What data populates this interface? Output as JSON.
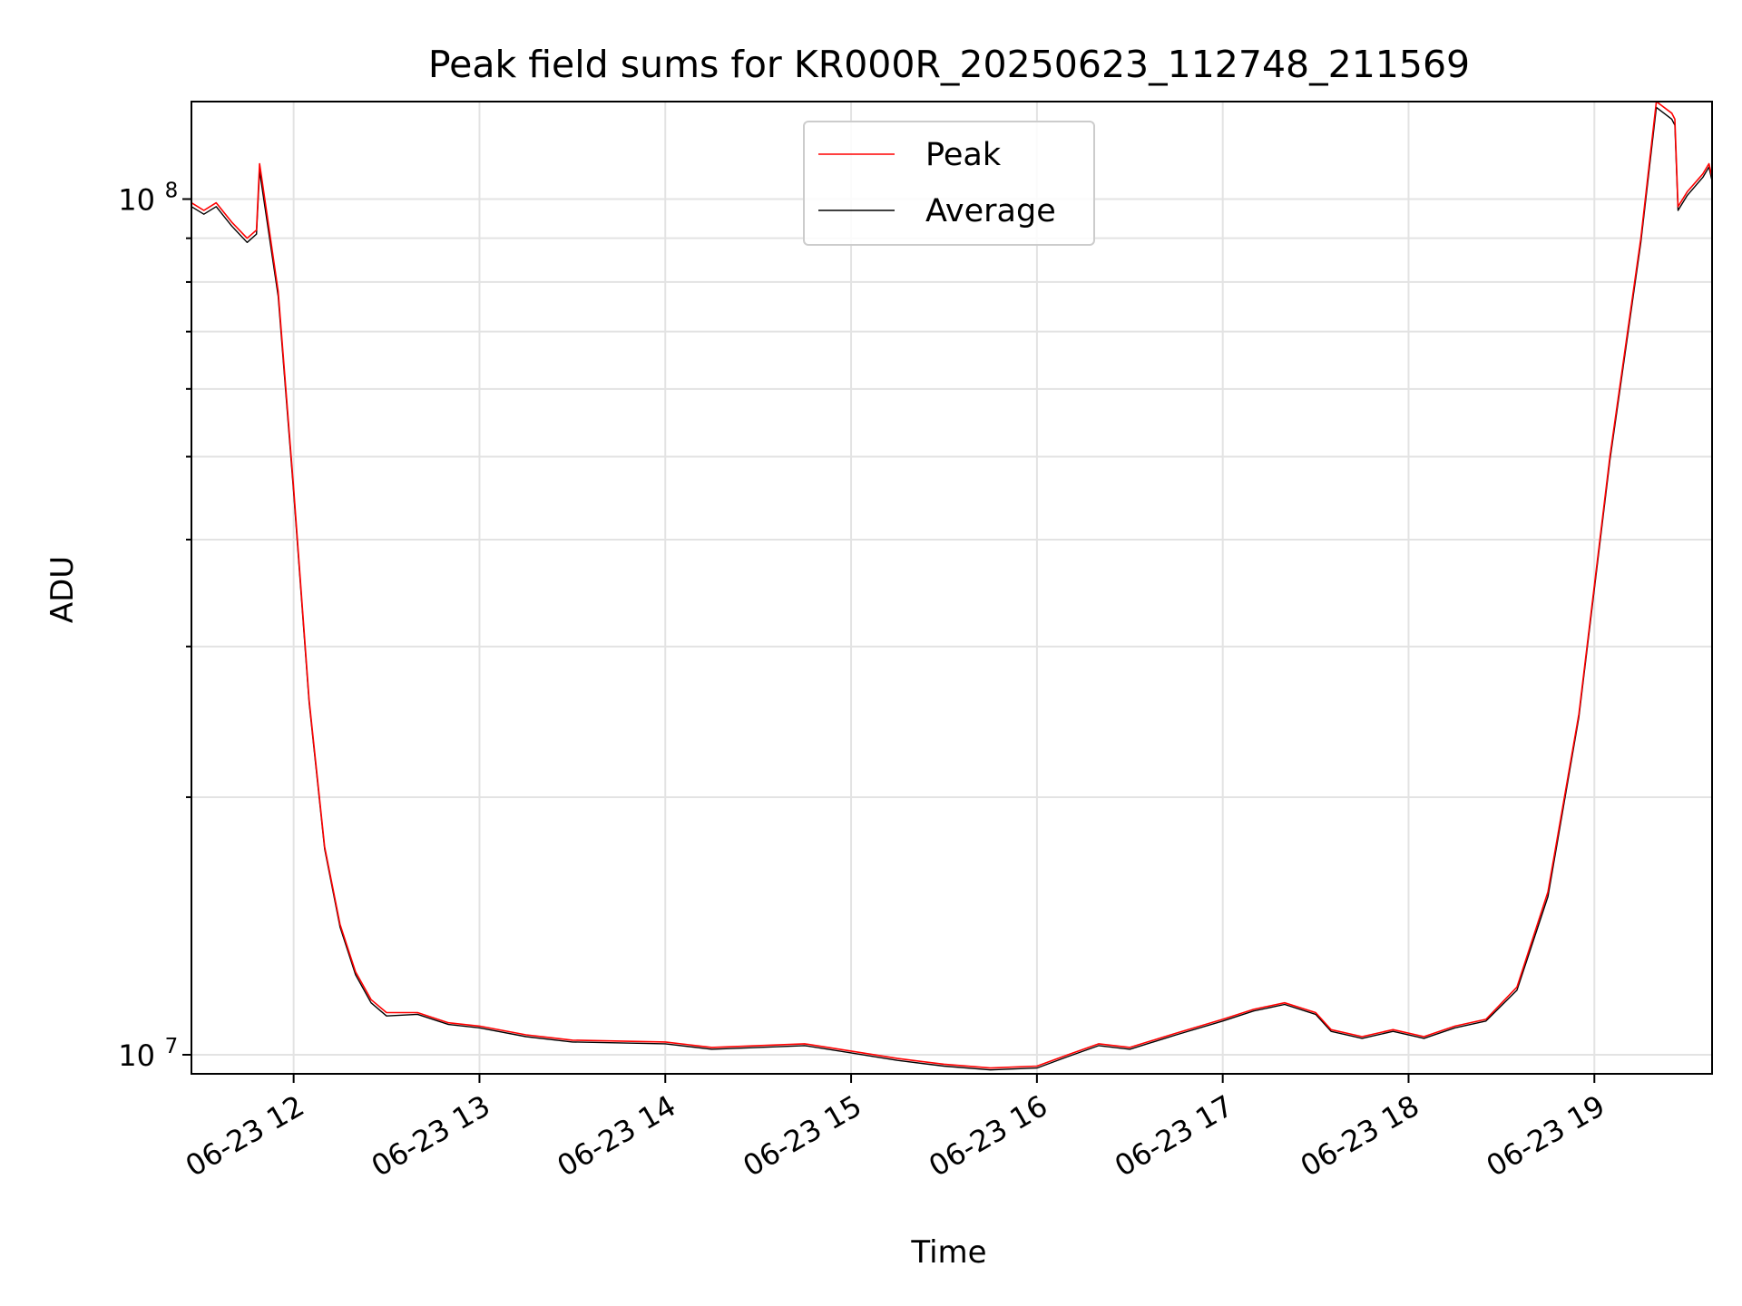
{
  "chart_data": {
    "type": "line",
    "title": "Peak field sums for KR000R_20250623_112748_211569",
    "xlabel": "Time",
    "ylabel": "ADU",
    "yscale": "log",
    "xlim": [
      "2025-06-23 11:27",
      "2025-06-23 19:38"
    ],
    "ylim": [
      9500000,
      130000000
    ],
    "x_ticks": [
      "06-23 12",
      "06-23 13",
      "06-23 14",
      "06-23 15",
      "06-23 16",
      "06-23 17",
      "06-23 18",
      "06-23 19"
    ],
    "y_major_ticks": [
      {
        "value": 10000000,
        "base": "10",
        "exp": "7"
      },
      {
        "value": 100000000,
        "base": "10",
        "exp": "8"
      }
    ],
    "grid": true,
    "legend_position": "top-center",
    "colors": {
      "peak": "#ff0000",
      "average": "#000000"
    },
    "series": [
      {
        "name": "Peak",
        "color": "#ff0000",
        "points": [
          [
            "11:27",
            99000000.0
          ],
          [
            "11:31",
            97000000.0
          ],
          [
            "11:35",
            99000000.0
          ],
          [
            "11:40",
            94000000.0
          ],
          [
            "11:45",
            90000000.0
          ],
          [
            "11:48",
            92000000.0
          ],
          [
            "11:49",
            110000000.0
          ],
          [
            "11:50",
            104000000.0
          ],
          [
            "11:55",
            78000000.0
          ],
          [
            "12:00",
            46000000.0
          ],
          [
            "12:05",
            26000000.0
          ],
          [
            "12:10",
            17500000.0
          ],
          [
            "12:15",
            14200000.0
          ],
          [
            "12:20",
            12500000.0
          ],
          [
            "12:25",
            11600000.0
          ],
          [
            "12:30",
            11200000.0
          ],
          [
            "12:40",
            11200000.0
          ],
          [
            "12:50",
            10900000.0
          ],
          [
            "13:00",
            10800000.0
          ],
          [
            "13:15",
            10550000.0
          ],
          [
            "13:30",
            10400000.0
          ],
          [
            "14:00",
            10350000.0
          ],
          [
            "14:15",
            10200000.0
          ],
          [
            "14:30",
            10250000.0
          ],
          [
            "14:45",
            10300000.0
          ],
          [
            "15:00",
            10100000.0
          ],
          [
            "15:15",
            9900000.0
          ],
          [
            "15:30",
            9750000.0
          ],
          [
            "15:45",
            9650000.0
          ],
          [
            "16:00",
            9700000.0
          ],
          [
            "16:10",
            10000000.0
          ],
          [
            "16:20",
            10300000.0
          ],
          [
            "16:30",
            10200000.0
          ],
          [
            "16:45",
            10600000.0
          ],
          [
            "17:00",
            11000000.0
          ],
          [
            "17:10",
            11300000.0
          ],
          [
            "17:20",
            11500000.0
          ],
          [
            "17:30",
            11200000.0
          ],
          [
            "17:35",
            10700000.0
          ],
          [
            "17:45",
            10500000.0
          ],
          [
            "17:55",
            10700000.0
          ],
          [
            "18:05",
            10500000.0
          ],
          [
            "18:15",
            10800000.0
          ],
          [
            "18:25",
            11000000.0
          ],
          [
            "18:35",
            12000000.0
          ],
          [
            "18:45",
            15500000.0
          ],
          [
            "18:55",
            25000000.0
          ],
          [
            "19:05",
            50000000.0
          ],
          [
            "19:15",
            90000000.0
          ],
          [
            "19:20",
            130000000.0
          ],
          [
            "19:25",
            126000000.0
          ],
          [
            "19:26",
            124000000.0
          ],
          [
            "19:27",
            98000000.0
          ],
          [
            "19:30",
            102000000.0
          ],
          [
            "19:35",
            107000000.0
          ],
          [
            "19:37",
            110000000.0
          ],
          [
            "19:38",
            106000000.0
          ]
        ]
      },
      {
        "name": "Average",
        "color": "#000000",
        "points": [
          [
            "11:27",
            98000000.0
          ],
          [
            "11:31",
            96000000.0
          ],
          [
            "11:35",
            98000000.0
          ],
          [
            "11:40",
            93000000.0
          ],
          [
            "11:45",
            89000000.0
          ],
          [
            "11:48",
            91000000.0
          ],
          [
            "11:49",
            108000000.0
          ],
          [
            "11:50",
            102000000.0
          ],
          [
            "11:55",
            77000000.0
          ],
          [
            "12:00",
            45500000.0
          ],
          [
            "12:05",
            25800000.0
          ],
          [
            "12:10",
            17400000.0
          ],
          [
            "12:15",
            14100000.0
          ],
          [
            "12:20",
            12400000.0
          ],
          [
            "12:25",
            11500000.0
          ],
          [
            "12:30",
            11100000.0
          ],
          [
            "12:40",
            11150000.0
          ],
          [
            "12:50",
            10850000.0
          ],
          [
            "13:00",
            10750000.0
          ],
          [
            "13:15",
            10500000.0
          ],
          [
            "13:30",
            10350000.0
          ],
          [
            "14:00",
            10300000.0
          ],
          [
            "14:15",
            10150000.0
          ],
          [
            "14:30",
            10200000.0
          ],
          [
            "14:45",
            10250000.0
          ],
          [
            "15:00",
            10050000.0
          ],
          [
            "15:15",
            9850000.0
          ],
          [
            "15:30",
            9700000.0
          ],
          [
            "15:45",
            9600000.0
          ],
          [
            "16:00",
            9650000.0
          ],
          [
            "16:10",
            9950000.0
          ],
          [
            "16:20",
            10250000.0
          ],
          [
            "16:30",
            10150000.0
          ],
          [
            "16:45",
            10550000.0
          ],
          [
            "17:00",
            10950000.0
          ],
          [
            "17:10",
            11250000.0
          ],
          [
            "17:20",
            11450000.0
          ],
          [
            "17:30",
            11150000.0
          ],
          [
            "17:35",
            10650000.0
          ],
          [
            "17:45",
            10450000.0
          ],
          [
            "17:55",
            10650000.0
          ],
          [
            "18:05",
            10450000.0
          ],
          [
            "18:15",
            10750000.0
          ],
          [
            "18:25",
            10950000.0
          ],
          [
            "18:35",
            11900000.0
          ],
          [
            "18:45",
            15300000.0
          ],
          [
            "18:55",
            24800000.0
          ],
          [
            "19:05",
            49500000.0
          ],
          [
            "19:15",
            89000000.0
          ],
          [
            "19:20",
            128000000.0
          ],
          [
            "19:25",
            124000000.0
          ],
          [
            "19:26",
            122000000.0
          ],
          [
            "19:27",
            97000000.0
          ],
          [
            "19:30",
            101000000.0
          ],
          [
            "19:35",
            106000000.0
          ],
          [
            "19:37",
            109000000.0
          ],
          [
            "19:38",
            105000000.0
          ]
        ]
      }
    ]
  }
}
